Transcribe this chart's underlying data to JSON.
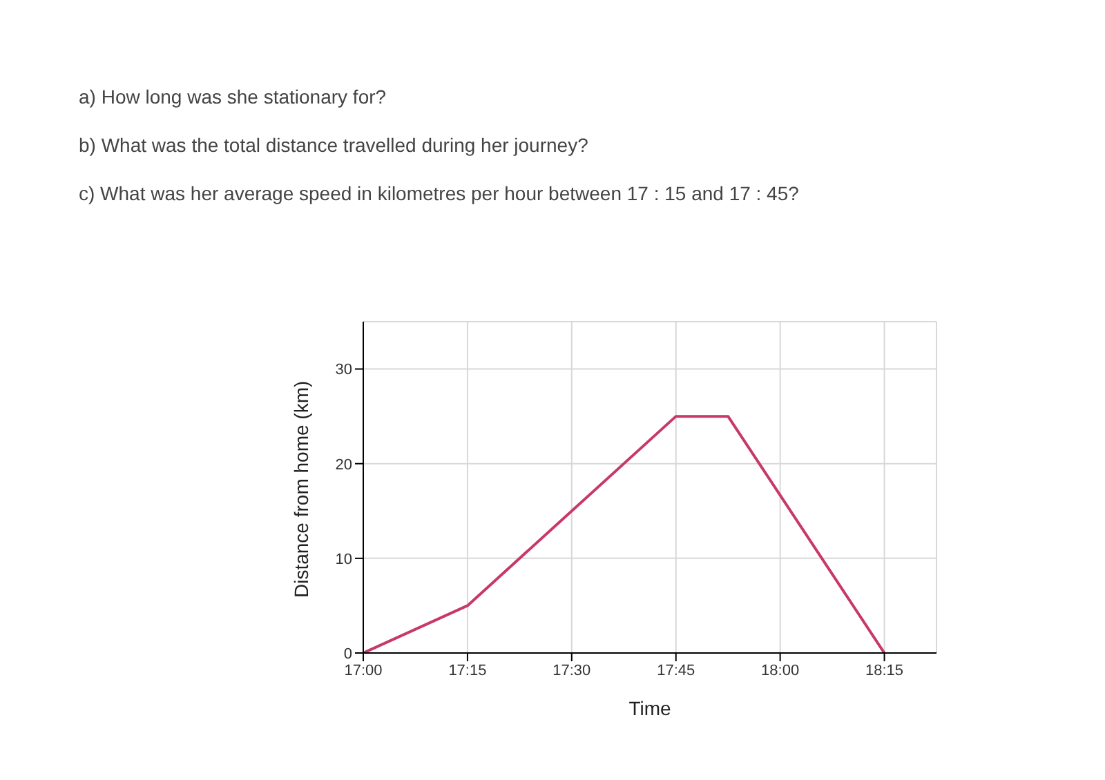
{
  "chart_data": {
    "type": "line",
    "xlabel": "Time",
    "ylabel": "Distance from home (km)",
    "annotations": [
      "a) How long was she stationary for?",
      "b) What was the total distance travelled during her journey?",
      "c) What was her average speed in kilometres per hour between 17 : 15 and 17 : 45?"
    ],
    "x": [
      17,
      17.25,
      17.75,
      17.875,
      18.25
    ],
    "series": [
      {
        "color": "#c8386b",
        "values": [
          0,
          5,
          25,
          25,
          0
        ]
      }
    ],
    "xlim": [
      17,
      18.375
    ],
    "xticks": [
      {
        "value": 17,
        "label": "17:00"
      },
      {
        "value": 17.25,
        "label": "17:15"
      },
      {
        "value": 17.5,
        "label": "17:30"
      },
      {
        "value": 17.75,
        "label": "17:45"
      },
      {
        "value": 18,
        "label": "18:00"
      },
      {
        "value": 18.25,
        "label": "18:15"
      }
    ],
    "ylim": [
      0,
      35
    ],
    "yticks": [
      0,
      10,
      20,
      30
    ],
    "grid": true,
    "marker": "none",
    "line_style": "solid",
    "legend": false
  }
}
